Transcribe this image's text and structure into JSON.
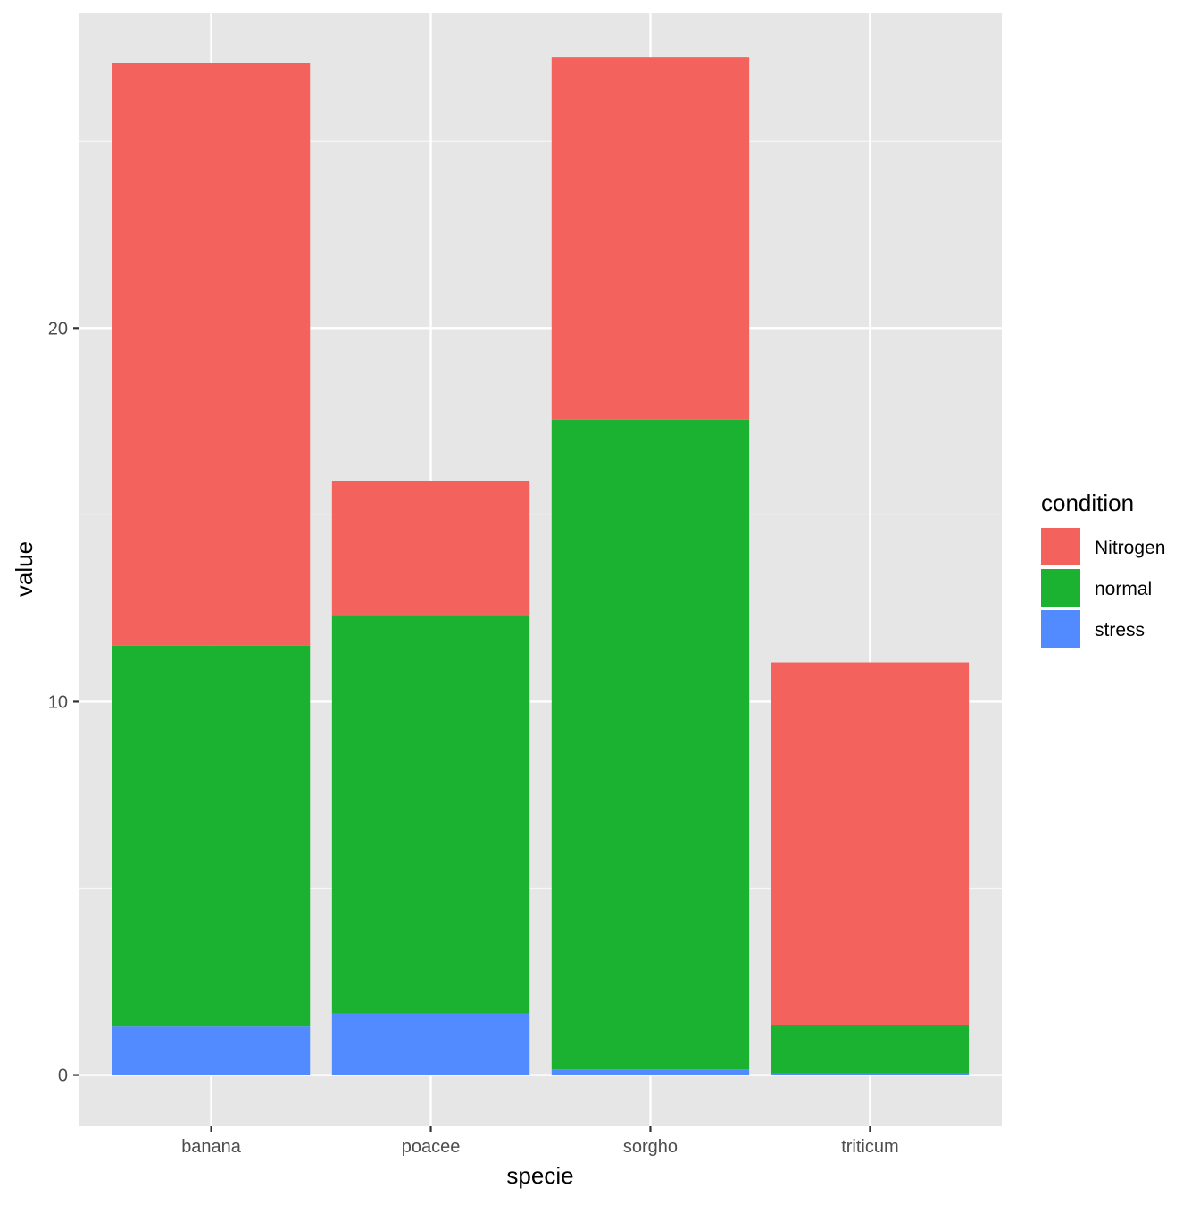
{
  "chart_data": {
    "type": "bar",
    "stacked": true,
    "categories": [
      "banana",
      "poacee",
      "sorgho",
      "triticum"
    ],
    "series": [
      {
        "name": "stress",
        "color": "#528BFF",
        "values": [
          1.3,
          1.65,
          0.15,
          0.05
        ]
      },
      {
        "name": "normal",
        "color": "#1BB131",
        "values": [
          10.2,
          10.65,
          17.4,
          1.3
        ]
      },
      {
        "name": "Nitrogen",
        "color": "#F3625D",
        "values": [
          15.6,
          3.6,
          9.7,
          9.7
        ]
      }
    ],
    "xlabel": "specie",
    "ylabel": "value",
    "ylim": [
      -1.35,
      28.45
    ],
    "yticks": [
      0,
      10,
      20
    ],
    "grid": true,
    "panel_background": "#E6E6E6",
    "grid_color": "#FFFFFF",
    "legend": {
      "title": "condition",
      "position": "right",
      "entries": [
        "Nitrogen",
        "normal",
        "stress"
      ]
    }
  }
}
